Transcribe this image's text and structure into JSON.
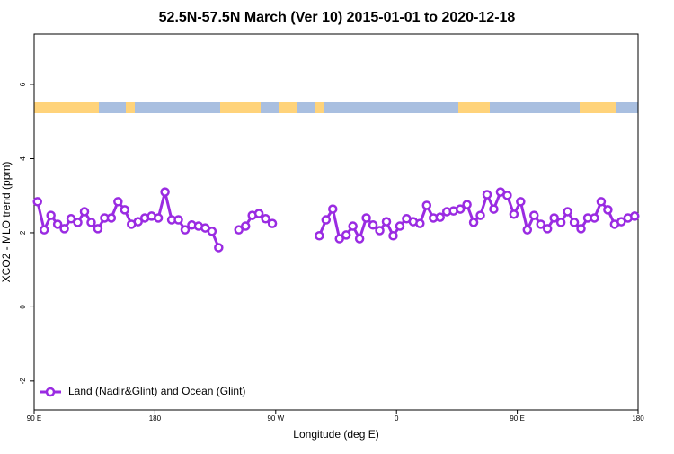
{
  "chart_data": {
    "type": "line",
    "title": "52.5N-57.5N March (Ver 10)   2015-01-01 to 2020-12-18",
    "x_label": "Longitude (deg E)",
    "y_label": "XCO2 - MLO trend (ppm)",
    "xlim": [
      90,
      540
    ],
    "ylim": [
      -2.78,
      7.36
    ],
    "xticks": [
      {
        "value": 90,
        "label": "90 E"
      },
      180,
      {
        "value": 270,
        "label": "90 W"
      },
      {
        "value": 360,
        "label": "0"
      },
      {
        "value": 450,
        "label": "90 E"
      },
      {
        "value": 540,
        "label": "180"
      }
    ],
    "yticks": [
      -2,
      0,
      2,
      4,
      6
    ],
    "legend": "bottom-left",
    "x": [
      92.5,
      97.5,
      102.5,
      107.5,
      112.5,
      117.5,
      122.5,
      127.5,
      132.5,
      137.5,
      142.5,
      147.5,
      152.5,
      157.5,
      162.5,
      167.5,
      172.5,
      177.5,
      182.5,
      187.5,
      192.5,
      197.5,
      202.5,
      207.5,
      212.5,
      217.5,
      222.5,
      227.5,
      232.5,
      237.5,
      242.5,
      247.5,
      252.5,
      257.5,
      262.5,
      267.5,
      272.5,
      277.5,
      282.5,
      287.5,
      292.5,
      297.5,
      302.5,
      307.5,
      312.5,
      317.5,
      322.5,
      327.5,
      332.5,
      337.5,
      342.5,
      347.5,
      352.5,
      357.5,
      362.5,
      367.5,
      372.5,
      377.5,
      382.5,
      387.5,
      392.5,
      397.5,
      402.5,
      407.5,
      412.5,
      417.5,
      422.5,
      427.5,
      432.5,
      437.5,
      442.5,
      447.5,
      452.5,
      457.5,
      462.5,
      467.5,
      472.5,
      477.5,
      482.5,
      487.5,
      492.5,
      497.5,
      502.5,
      507.5,
      512.5,
      517.5,
      522.5,
      527.5,
      532.5,
      537.5
    ],
    "series": [
      {
        "name": "Land (Nadir&Glint) and Ocean (Glint)",
        "color": "#9a2be2",
        "values": [
          2.84,
          2.08,
          2.47,
          2.23,
          2.11,
          2.38,
          2.28,
          2.57,
          2.28,
          2.11,
          2.4,
          2.4,
          2.84,
          2.62,
          2.23,
          2.3,
          2.4,
          2.45,
          2.4,
          3.1,
          2.35,
          2.35,
          2.08,
          2.21,
          2.18,
          2.13,
          2.04,
          1.6,
          null,
          null,
          2.08,
          2.18,
          2.47,
          2.52,
          2.38,
          2.25,
          null,
          null,
          null,
          null,
          null,
          null,
          1.92,
          2.35,
          2.64,
          1.84,
          1.94,
          2.18,
          1.84,
          2.4,
          2.21,
          2.06,
          2.3,
          1.92,
          2.18,
          2.38,
          2.3,
          2.25,
          2.74,
          2.4,
          2.42,
          2.57,
          2.59,
          2.64,
          2.76,
          2.28,
          2.47,
          3.03,
          2.64,
          3.1,
          3.01,
          2.5,
          2.84,
          2.08,
          2.47,
          2.23,
          2.11,
          2.4,
          2.28,
          2.57,
          2.28,
          2.11,
          2.4,
          2.4,
          2.84,
          2.62,
          2.23,
          2.3,
          2.4,
          2.45
        ]
      }
    ]
  }
}
